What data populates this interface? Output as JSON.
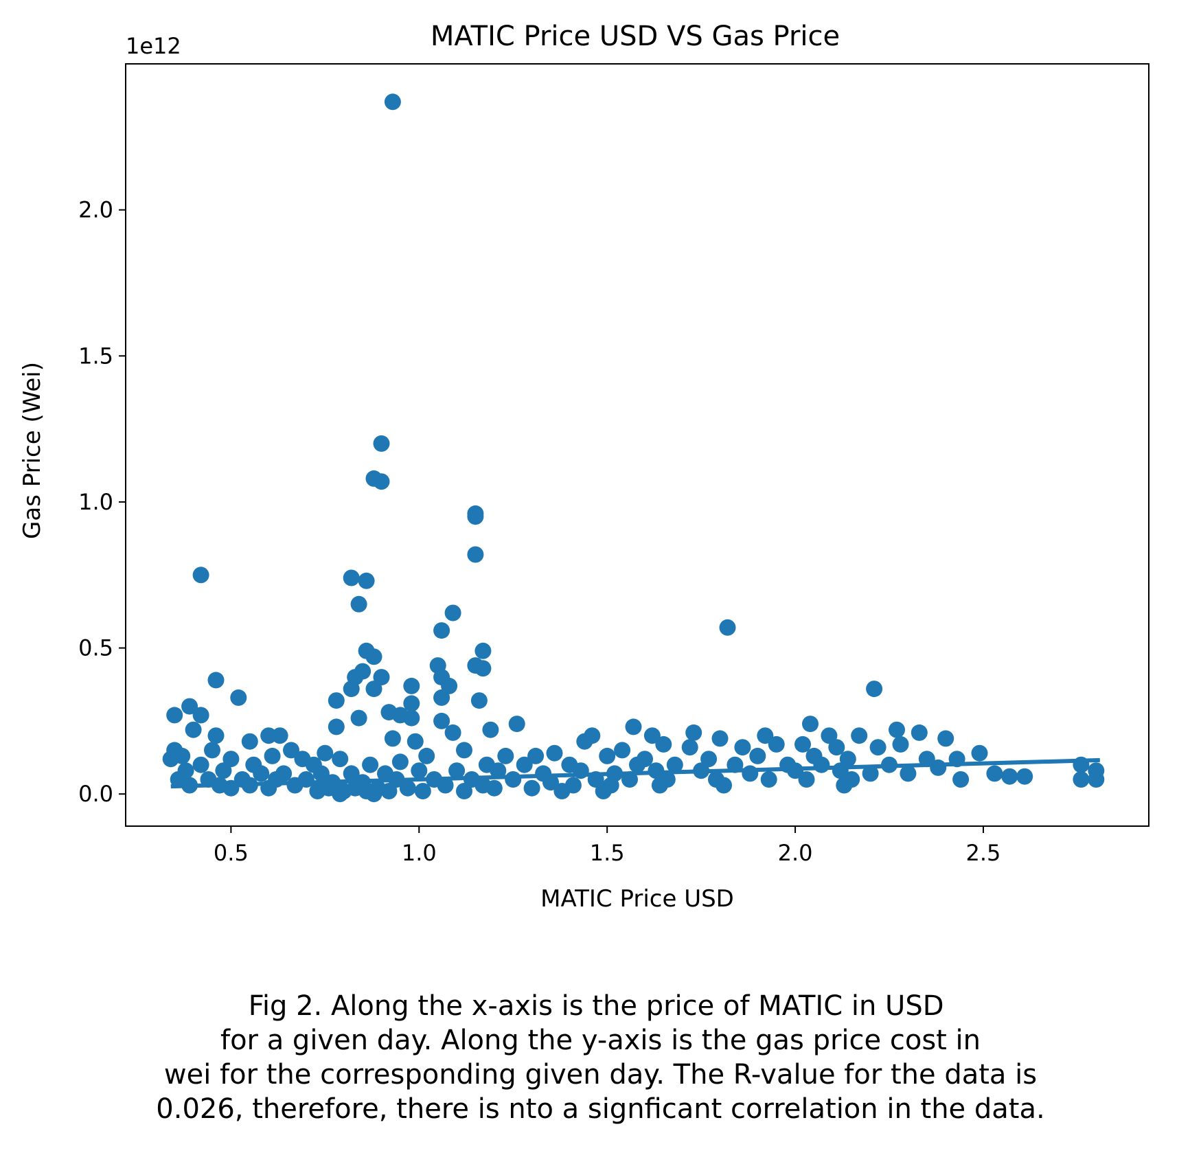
{
  "chart_data": {
    "type": "scatter",
    "title": "MATIC Price USD VS Gas Price",
    "xlabel": "MATIC Price USD",
    "ylabel": "Gas Price (Wei)",
    "y_offset_label": "1e12",
    "xlim": [
      0.22,
      2.94
    ],
    "ylim": [
      -0.11,
      2.5
    ],
    "y_scale_note": "y values in units of 1e12 wei",
    "xticks": [
      0.5,
      1.0,
      1.5,
      2.0,
      2.5
    ],
    "xtick_labels": [
      "0.5",
      "1.0",
      "1.5",
      "2.0",
      "2.5"
    ],
    "yticks": [
      0.0,
      0.5,
      1.0,
      1.5,
      2.0
    ],
    "ytick_labels": [
      "0.0",
      "0.5",
      "1.0",
      "1.5",
      "2.0"
    ],
    "grid": false,
    "color": "#1f77b4",
    "series": [
      {
        "points": [
          [
            0.93,
            2.37
          ],
          [
            0.9,
            1.2
          ],
          [
            0.88,
            1.08
          ],
          [
            0.9,
            1.07
          ],
          [
            1.15,
            0.96
          ],
          [
            1.15,
            0.95
          ],
          [
            1.15,
            0.82
          ],
          [
            0.42,
            0.75
          ],
          [
            0.82,
            0.74
          ],
          [
            0.86,
            0.73
          ],
          [
            0.84,
            0.65
          ],
          [
            1.09,
            0.62
          ],
          [
            1.82,
            0.57
          ],
          [
            1.06,
            0.56
          ],
          [
            0.86,
            0.49
          ],
          [
            1.17,
            0.49
          ],
          [
            0.88,
            0.47
          ],
          [
            1.05,
            0.44
          ],
          [
            1.15,
            0.44
          ],
          [
            1.17,
            0.43
          ],
          [
            0.85,
            0.42
          ],
          [
            1.06,
            0.4
          ],
          [
            0.83,
            0.4
          ],
          [
            0.9,
            0.4
          ],
          [
            0.46,
            0.39
          ],
          [
            0.98,
            0.37
          ],
          [
            1.08,
            0.37
          ],
          [
            0.82,
            0.36
          ],
          [
            0.88,
            0.36
          ],
          [
            2.21,
            0.36
          ],
          [
            0.52,
            0.33
          ],
          [
            1.06,
            0.33
          ],
          [
            1.16,
            0.32
          ],
          [
            0.78,
            0.32
          ],
          [
            0.98,
            0.31
          ],
          [
            0.39,
            0.3
          ],
          [
            0.92,
            0.28
          ],
          [
            0.35,
            0.27
          ],
          [
            0.42,
            0.27
          ],
          [
            0.84,
            0.26
          ],
          [
            0.95,
            0.27
          ],
          [
            0.98,
            0.26
          ],
          [
            1.06,
            0.25
          ],
          [
            1.26,
            0.24
          ],
          [
            0.78,
            0.23
          ],
          [
            1.57,
            0.23
          ],
          [
            2.04,
            0.24
          ],
          [
            2.27,
            0.22
          ],
          [
            0.4,
            0.22
          ],
          [
            1.09,
            0.21
          ],
          [
            1.73,
            0.21
          ],
          [
            2.33,
            0.21
          ],
          [
            1.46,
            0.2
          ],
          [
            1.19,
            0.22
          ],
          [
            0.46,
            0.2
          ],
          [
            0.6,
            0.2
          ],
          [
            0.63,
            0.2
          ],
          [
            1.62,
            0.2
          ],
          [
            1.92,
            0.2
          ],
          [
            2.09,
            0.2
          ],
          [
            2.17,
            0.2
          ],
          [
            0.93,
            0.19
          ],
          [
            2.4,
            0.19
          ],
          [
            1.8,
            0.19
          ],
          [
            0.55,
            0.18
          ],
          [
            0.99,
            0.18
          ],
          [
            1.44,
            0.18
          ],
          [
            1.65,
            0.17
          ],
          [
            1.95,
            0.17
          ],
          [
            2.28,
            0.17
          ],
          [
            0.35,
            0.15
          ],
          [
            0.45,
            0.15
          ],
          [
            0.66,
            0.15
          ],
          [
            0.75,
            0.14
          ],
          [
            1.12,
            0.15
          ],
          [
            1.36,
            0.14
          ],
          [
            1.54,
            0.15
          ],
          [
            1.72,
            0.16
          ],
          [
            1.86,
            0.16
          ],
          [
            2.02,
            0.17
          ],
          [
            2.11,
            0.16
          ],
          [
            2.22,
            0.16
          ],
          [
            2.49,
            0.14
          ],
          [
            0.37,
            0.13
          ],
          [
            0.5,
            0.12
          ],
          [
            0.61,
            0.13
          ],
          [
            0.69,
            0.12
          ],
          [
            0.79,
            0.12
          ],
          [
            1.02,
            0.13
          ],
          [
            1.23,
            0.13
          ],
          [
            1.31,
            0.13
          ],
          [
            1.5,
            0.13
          ],
          [
            1.6,
            0.12
          ],
          [
            1.77,
            0.12
          ],
          [
            1.9,
            0.13
          ],
          [
            2.05,
            0.13
          ],
          [
            2.14,
            0.12
          ],
          [
            2.35,
            0.12
          ],
          [
            2.43,
            0.12
          ],
          [
            0.34,
            0.12
          ],
          [
            0.42,
            0.1
          ],
          [
            0.56,
            0.1
          ],
          [
            0.72,
            0.1
          ],
          [
            0.87,
            0.1
          ],
          [
            0.95,
            0.11
          ],
          [
            1.18,
            0.1
          ],
          [
            1.28,
            0.1
          ],
          [
            1.4,
            0.1
          ],
          [
            1.58,
            0.1
          ],
          [
            1.68,
            0.1
          ],
          [
            1.84,
            0.1
          ],
          [
            1.98,
            0.1
          ],
          [
            2.07,
            0.1
          ],
          [
            2.25,
            0.1
          ],
          [
            2.38,
            0.09
          ],
          [
            2.76,
            0.1
          ],
          [
            2.8,
            0.08
          ],
          [
            0.38,
            0.08
          ],
          [
            0.48,
            0.08
          ],
          [
            0.58,
            0.07
          ],
          [
            0.64,
            0.07
          ],
          [
            0.74,
            0.07
          ],
          [
            0.82,
            0.07
          ],
          [
            0.91,
            0.07
          ],
          [
            1.0,
            0.08
          ],
          [
            1.1,
            0.08
          ],
          [
            1.21,
            0.08
          ],
          [
            1.33,
            0.07
          ],
          [
            1.43,
            0.08
          ],
          [
            1.52,
            0.07
          ],
          [
            1.63,
            0.08
          ],
          [
            1.75,
            0.08
          ],
          [
            1.88,
            0.07
          ],
          [
            2.0,
            0.08
          ],
          [
            2.12,
            0.08
          ],
          [
            2.2,
            0.07
          ],
          [
            2.3,
            0.07
          ],
          [
            2.53,
            0.07
          ],
          [
            2.57,
            0.06
          ],
          [
            2.61,
            0.06
          ],
          [
            0.36,
            0.05
          ],
          [
            0.44,
            0.05
          ],
          [
            0.53,
            0.05
          ],
          [
            0.62,
            0.05
          ],
          [
            0.7,
            0.05
          ],
          [
            0.77,
            0.04
          ],
          [
            0.85,
            0.04
          ],
          [
            0.94,
            0.05
          ],
          [
            1.04,
            0.05
          ],
          [
            1.14,
            0.05
          ],
          [
            1.25,
            0.05
          ],
          [
            1.35,
            0.04
          ],
          [
            1.47,
            0.05
          ],
          [
            1.56,
            0.05
          ],
          [
            1.66,
            0.05
          ],
          [
            1.79,
            0.05
          ],
          [
            1.93,
            0.05
          ],
          [
            2.03,
            0.05
          ],
          [
            2.15,
            0.05
          ],
          [
            2.44,
            0.05
          ],
          [
            2.76,
            0.05
          ],
          [
            2.8,
            0.05
          ],
          [
            0.39,
            0.03
          ],
          [
            0.47,
            0.03
          ],
          [
            0.55,
            0.03
          ],
          [
            0.67,
            0.03
          ],
          [
            0.76,
            0.02
          ],
          [
            0.83,
            0.02
          ],
          [
            0.89,
            0.02
          ],
          [
            0.97,
            0.02
          ],
          [
            1.07,
            0.03
          ],
          [
            1.17,
            0.03
          ],
          [
            1.3,
            0.02
          ],
          [
            1.41,
            0.03
          ],
          [
            1.51,
            0.03
          ],
          [
            1.64,
            0.03
          ],
          [
            1.81,
            0.03
          ],
          [
            2.13,
            0.03
          ],
          [
            0.5,
            0.02
          ],
          [
            0.6,
            0.02
          ],
          [
            0.73,
            0.01
          ],
          [
            0.8,
            0.01
          ],
          [
            0.86,
            0.01
          ],
          [
            0.92,
            0.01
          ],
          [
            1.01,
            0.01
          ],
          [
            1.12,
            0.01
          ],
          [
            1.2,
            0.02
          ],
          [
            1.38,
            0.01
          ],
          [
            1.49,
            0.01
          ],
          [
            0.79,
            0.0
          ],
          [
            0.88,
            0.0
          ]
        ]
      }
    ],
    "regression_line": {
      "x": [
        0.34,
        2.81
      ],
      "y": [
        0.026,
        0.116
      ]
    }
  },
  "caption": [
    "Fig 2. Along the x-axis is the price of MATIC in USD ",
    "for a given day. Along the y-axis is the gas price cost in",
    "wei for the corresponding given day. The R-value for the data is",
    "0.026, therefore, there is nto a signficant correlation in the data."
  ]
}
